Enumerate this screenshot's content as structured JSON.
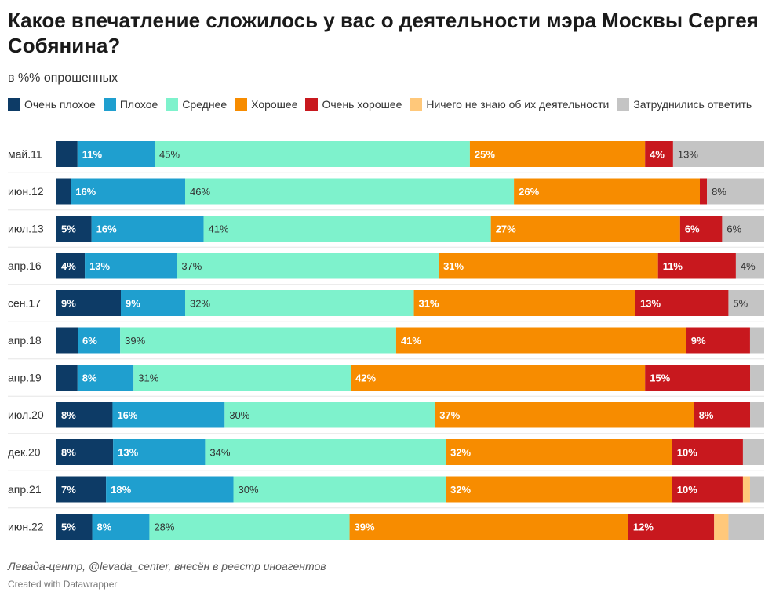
{
  "title": "Какое впечатление сложилось у вас о деятельности мэра Москвы Сергея Собянина?",
  "subtitle": "в %% опрошенных",
  "source": "Левада-центр, @levada_center, внесён в реестр иноагентов",
  "credit": "Created with Datawrapper",
  "chart_data": {
    "type": "bar",
    "orientation": "horizontal",
    "stacked": true,
    "normalized_100": true,
    "categories": [
      "май.11",
      "июн.12",
      "июл.13",
      "апр.16",
      "сен.17",
      "апр.18",
      "апр.19",
      "июл.20",
      "дек.20",
      "апр.21",
      "июн.22"
    ],
    "series": [
      {
        "name": "Очень плохое",
        "color": "#0d3b66",
        "text_color": "#ffffff",
        "values": [
          3,
          2,
          5,
          4,
          9,
          3,
          3,
          8,
          8,
          7,
          5
        ],
        "labels": [
          "",
          "",
          "5%",
          "4%",
          "9%",
          "",
          "",
          "8%",
          "8%",
          "7%",
          "5%"
        ]
      },
      {
        "name": "Плохое",
        "color": "#1f9fcf",
        "text_color": "#ffffff",
        "values": [
          11,
          16,
          16,
          13,
          9,
          6,
          8,
          16,
          13,
          18,
          8
        ],
        "labels": [
          "11%",
          "16%",
          "16%",
          "13%",
          "9%",
          "6%",
          "8%",
          "16%",
          "13%",
          "18%",
          "8%"
        ]
      },
      {
        "name": "Среднее",
        "color": "#7ef2cc",
        "text_color": "#333333",
        "values": [
          45,
          46,
          41,
          37,
          32,
          39,
          31,
          30,
          34,
          30,
          28
        ],
        "labels": [
          "45%",
          "46%",
          "41%",
          "37%",
          "32%",
          "39%",
          "31%",
          "30%",
          "34%",
          "30%",
          "28%"
        ]
      },
      {
        "name": "Хорошее",
        "color": "#f78c00",
        "text_color": "#ffffff",
        "values": [
          25,
          26,
          27,
          31,
          31,
          41,
          42,
          37,
          32,
          32,
          39
        ],
        "labels": [
          "25%",
          "26%",
          "27%",
          "31%",
          "31%",
          "41%",
          "42%",
          "37%",
          "32%",
          "32%",
          "39%"
        ]
      },
      {
        "name": "Очень хорошее",
        "color": "#c8181e",
        "text_color": "#ffffff",
        "values": [
          4,
          1,
          6,
          11,
          13,
          9,
          15,
          8,
          10,
          10,
          12
        ],
        "labels": [
          "4%",
          "",
          "6%",
          "11%",
          "13%",
          "9%",
          "15%",
          "8%",
          "10%",
          "10%",
          "12%"
        ]
      },
      {
        "name": "Ничего не знаю об их деятельности",
        "color": "#ffc87a",
        "text_color": "#333333",
        "values": [
          0,
          0,
          0,
          0,
          0,
          0,
          0,
          0,
          0,
          1,
          2
        ],
        "labels": [
          "",
          "",
          "",
          "",
          "",
          "",
          "",
          "",
          "",
          "",
          ""
        ]
      },
      {
        "name": "Затруднились ответить",
        "color": "#c4c4c4",
        "text_color": "#333333",
        "values": [
          13,
          8,
          6,
          4,
          5,
          2,
          2,
          2,
          3,
          2,
          5
        ],
        "labels": [
          "13%",
          "8%",
          "6%",
          "4%",
          "5%",
          "",
          "",
          "",
          "",
          "",
          ""
        ]
      }
    ],
    "xlim": [
      0,
      100
    ],
    "grid": false,
    "legend_position": "top"
  }
}
